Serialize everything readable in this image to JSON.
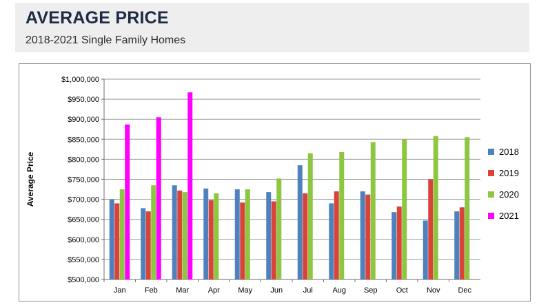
{
  "header": {
    "title": "AVERAGE PRICE",
    "subtitle": "2018-2021 Single Family Homes"
  },
  "chart_data": {
    "type": "bar",
    "title": "AVERAGE PRICE",
    "subtitle": "2018-2021 Single Family Homes",
    "xlabel": "",
    "ylabel": "Average Price",
    "ylim": [
      500000,
      1000000
    ],
    "ytick_step": 50000,
    "ytick_labels": [
      "$500,000",
      "$550,000",
      "$600,000",
      "$650,000",
      "$700,000",
      "$750,000",
      "$800,000",
      "$850,000",
      "$900,000",
      "$950,000",
      "$1,000,000"
    ],
    "grid": true,
    "legend_position": "right",
    "categories": [
      "Jan",
      "Feb",
      "Mar",
      "Apr",
      "May",
      "Jun",
      "Jul",
      "Aug",
      "Sep",
      "Oct",
      "Nov",
      "Dec"
    ],
    "series": [
      {
        "name": "2018",
        "color": "#4f81bd",
        "values": [
          700000,
          678000,
          735000,
          727000,
          725000,
          718000,
          785000,
          690000,
          720000,
          668000,
          647000,
          670000
        ]
      },
      {
        "name": "2019",
        "color": "#d9433a",
        "values": [
          690000,
          670000,
          722000,
          698000,
          692000,
          695000,
          715000,
          720000,
          712000,
          682000,
          750000,
          680000
        ]
      },
      {
        "name": "2020",
        "color": "#8dc63f",
        "values": [
          725000,
          735000,
          718000,
          715000,
          725000,
          752000,
          815000,
          818000,
          843000,
          850000,
          858000,
          855000
        ]
      },
      {
        "name": "2021",
        "color": "#ff00ff",
        "values": [
          887000,
          905000,
          967000,
          null,
          null,
          null,
          null,
          null,
          null,
          null,
          null,
          null
        ]
      }
    ]
  }
}
